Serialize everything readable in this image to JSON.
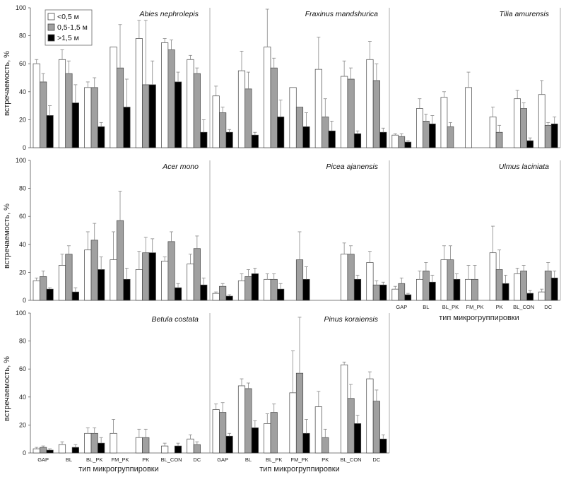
{
  "colors": {
    "series_0": "#ffffff",
    "series_1": "#a0a0a0",
    "series_2": "#000000",
    "bar_edge": "#444444",
    "error_bar": "#888888",
    "divider": "#999999"
  },
  "chart_data": {
    "type": "bar",
    "ylabel": "встречаемость, %",
    "xlabel": "тип микрогруппировки",
    "ylim": [
      0,
      100
    ],
    "yticks": [
      "0",
      "20",
      "40",
      "60",
      "80",
      "100"
    ],
    "legend": {
      "placement": "top-left",
      "entries": [
        "<0,5 м",
        "0,5-1,5 м",
        ">1,5 м"
      ]
    },
    "categories": [
      "GAP",
      "BL",
      "BL_PK",
      "FM_PK",
      "PK",
      "BL_CON",
      "DC"
    ],
    "panels": [
      {
        "title": "Abies nephrolepis",
        "series": [
          {
            "name": "<0,5 м",
            "values": [
              60,
              63,
              43,
              72,
              78,
              75,
              63
            ],
            "errors": [
              3,
              7,
              4,
              0,
              13,
              3,
              3
            ]
          },
          {
            "name": "0,5-1,5 м",
            "values": [
              47,
              53,
              43,
              57,
              45,
              70,
              53
            ],
            "errors": [
              6,
              9,
              7,
              31,
              46,
              7,
              4
            ]
          },
          {
            "name": ">1,5 м",
            "values": [
              23,
              32,
              15,
              29,
              45,
              47,
              11
            ],
            "errors": [
              7,
              13,
              3,
              20,
              17,
              7,
              9
            ]
          }
        ]
      },
      {
        "title": "Fraxinus mandshurica",
        "series": [
          {
            "name": "<0,5 м",
            "values": [
              37,
              55,
              72,
              43,
              56,
              51,
              63
            ],
            "errors": [
              7,
              14,
              27,
              0,
              23,
              11,
              13
            ]
          },
          {
            "name": "0,5-1,5 м",
            "values": [
              25,
              42,
              57,
              29,
              22,
              49,
              48
            ],
            "errors": [
              4,
              12,
              7,
              0,
              13,
              8,
              12
            ]
          },
          {
            "name": ">1,5 м",
            "values": [
              11,
              9,
              22,
              15,
              12,
              10,
              11
            ],
            "errors": [
              2,
              2,
              12,
              10,
              7,
              2,
              3
            ]
          }
        ]
      },
      {
        "title": "Tilia amurensis",
        "series": [
          {
            "name": "<0,5 м",
            "values": [
              9,
              28,
              36,
              43,
              22,
              35,
              38
            ],
            "errors": [
              1,
              7,
              4,
              11,
              7,
              6,
              10
            ]
          },
          {
            "name": "0,5-1,5 м",
            "values": [
              8,
              19,
              15,
              0,
              11,
              28,
              16
            ],
            "errors": [
              2,
              5,
              3,
              0,
              5,
              4,
              2
            ]
          },
          {
            "name": ">1,5 м",
            "values": [
              4,
              17,
              0,
              0,
              0,
              5,
              17
            ],
            "errors": [
              1,
              6,
              0,
              0,
              0,
              2,
              5
            ]
          }
        ]
      },
      {
        "title": "Acer mono",
        "series": [
          {
            "name": "<0,5 м",
            "values": [
              14,
              25,
              36,
              29,
              22,
              28,
              26
            ],
            "errors": [
              2,
              8,
              13,
              20,
              13,
              3,
              7
            ]
          },
          {
            "name": "0,5-1,5 м",
            "values": [
              17,
              33,
              43,
              57,
              34,
              42,
              37
            ],
            "errors": [
              4,
              6,
              12,
              21,
              11,
              7,
              9
            ]
          },
          {
            "name": ">1,5 м",
            "values": [
              8,
              6,
              22,
              15,
              34,
              9,
              11
            ],
            "errors": [
              1,
              3,
              9,
              8,
              10,
              3,
              5
            ]
          }
        ]
      },
      {
        "title": "Picea ajanensis",
        "series": [
          {
            "name": "<0,5 м",
            "values": [
              5,
              14,
              15,
              0,
              0,
              33,
              27
            ],
            "errors": [
              1,
              5,
              4,
              0,
              0,
              8,
              8
            ]
          },
          {
            "name": "0,5-1,5 м",
            "values": [
              10,
              17,
              15,
              29,
              0,
              33,
              11
            ],
            "errors": [
              2,
              5,
              4,
              20,
              0,
              6,
              3
            ]
          },
          {
            "name": ">1,5 м",
            "values": [
              3,
              19,
              8,
              15,
              0,
              15,
              11
            ],
            "errors": [
              1,
              4,
              4,
              9,
              0,
              3,
              2
            ]
          }
        ]
      },
      {
        "title": "Ulmus laciniata",
        "series": [
          {
            "name": "<0,5 м",
            "values": [
              8,
              15,
              29,
              15,
              34,
              19,
              6
            ],
            "errors": [
              2,
              6,
              10,
              10,
              19,
              4,
              2
            ]
          },
          {
            "name": "0,5-1,5 м",
            "values": [
              12,
              21,
              29,
              15,
              22,
              21,
              21
            ],
            "errors": [
              4,
              6,
              10,
              10,
              14,
              4,
              6
            ]
          },
          {
            "name": ">1,5 м",
            "values": [
              4,
              13,
              15,
              0,
              12,
              5,
              16
            ],
            "errors": [
              1,
              5,
              4,
              0,
              6,
              2,
              5
            ]
          }
        ]
      },
      {
        "title": "Betula costata",
        "series": [
          {
            "name": "<0,5 м",
            "values": [
              3,
              6,
              14,
              14,
              11,
              5,
              10
            ],
            "errors": [
              1,
              2,
              4,
              10,
              6,
              2,
              3
            ]
          },
          {
            "name": "0,5-1,5 м",
            "values": [
              4,
              0,
              14,
              0,
              11,
              0,
              6
            ],
            "errors": [
              1,
              0,
              4,
              0,
              6,
              0,
              2
            ]
          },
          {
            "name": ">1,5 м",
            "values": [
              2,
              4,
              7,
              0,
              0,
              5,
              0
            ],
            "errors": [
              1,
              2,
              4,
              0,
              0,
              2,
              0
            ]
          }
        ]
      },
      {
        "title": "Pinus koraiensis",
        "series": [
          {
            "name": "<0,5 м",
            "values": [
              31,
              48,
              21,
              43,
              33,
              63,
              53
            ],
            "errors": [
              4,
              5,
              7,
              30,
              11,
              2,
              5
            ]
          },
          {
            "name": "0,5-1,5 м",
            "values": [
              29,
              46,
              29,
              57,
              11,
              39,
              37
            ],
            "errors": [
              7,
              4,
              6,
              40,
              6,
              10,
              8
            ]
          },
          {
            "name": ">1,5 м",
            "values": [
              12,
              18,
              0,
              14,
              0,
              21,
              10
            ],
            "errors": [
              2,
              5,
              0,
              10,
              0,
              6,
              3
            ]
          }
        ]
      }
    ]
  }
}
